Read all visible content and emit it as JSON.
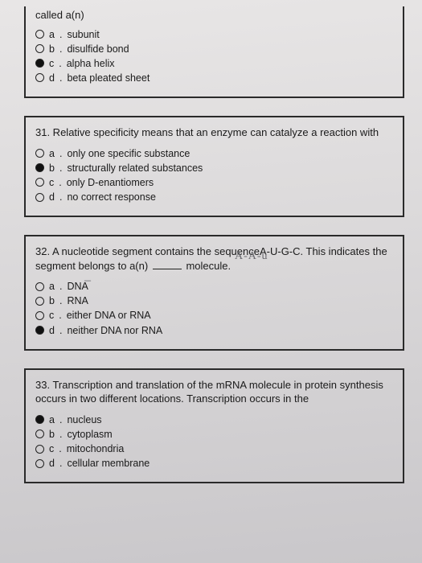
{
  "q30": {
    "fragment": "called a(n)",
    "options": [
      {
        "letter": "a",
        "text": "subunit",
        "filled": false
      },
      {
        "letter": "b",
        "text": "disulfide bond",
        "filled": false
      },
      {
        "letter": "c",
        "text": "alpha helix",
        "filled": true
      },
      {
        "letter": "d",
        "text": "beta pleated sheet",
        "filled": false
      }
    ]
  },
  "q31": {
    "stem": "31. Relative specificity means that an enzyme can catalyze a reaction with",
    "options": [
      {
        "letter": "a",
        "text": "only one specific substance",
        "filled": false
      },
      {
        "letter": "b",
        "text": "structurally related substances",
        "filled": true
      },
      {
        "letter": "c",
        "text": "only D-enantiomers",
        "filled": false
      },
      {
        "letter": "d",
        "text": "no correct response",
        "filled": false
      }
    ]
  },
  "q32": {
    "stem_pre": "32. A nucleotide segment contains the sequenceA-U-G-C. This indicates the segment belongs to a(n)",
    "stem_post": "molecule.",
    "handwritten": "A-A-u",
    "options": [
      {
        "letter": "a",
        "text": "DNA",
        "filled": false
      },
      {
        "letter": "b",
        "text": "RNA",
        "filled": false
      },
      {
        "letter": "c",
        "text": "either DNA or RNA",
        "filled": false
      },
      {
        "letter": "d",
        "text": "neither DNA nor RNA",
        "filled": true
      }
    ]
  },
  "q33": {
    "stem": "33. Transcription and translation of the mRNA molecule in protein synthesis occurs in two different locations. Transcription occurs in the",
    "options": [
      {
        "letter": "a",
        "text": "nucleus",
        "filled": true
      },
      {
        "letter": "b",
        "text": "cytoplasm",
        "filled": false
      },
      {
        "letter": "c",
        "text": "mitochondria",
        "filled": false
      },
      {
        "letter": "d",
        "text": "cellular membrane",
        "filled": false
      }
    ]
  }
}
